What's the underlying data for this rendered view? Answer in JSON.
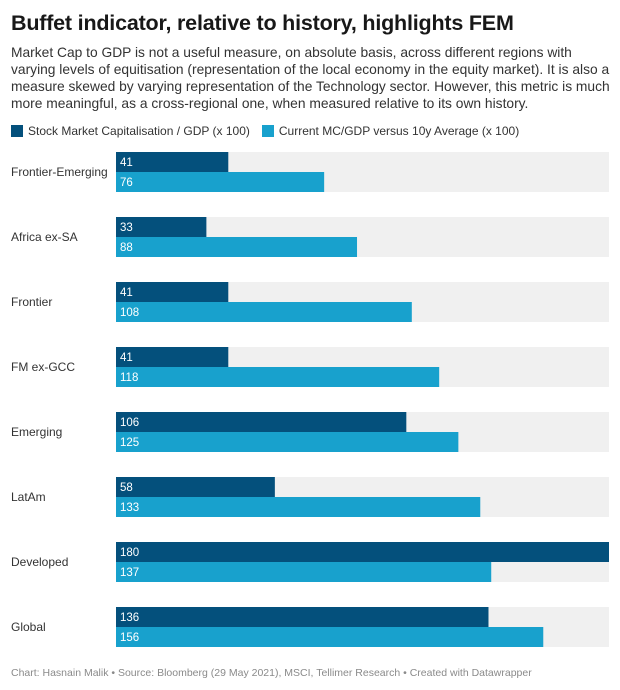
{
  "title": "Buffet indicator, relative to history, highlights FEM",
  "subtitle": "Market Cap to GDP is not a useful measure, on absolute basis, across different regions with varying levels of equitisation (representation of the local economy in the equity market). It is also a measure skewed by varying representation of the Technology sector. However, this metric is much more meaningful, as a cross-regional one, when measured relative to its own history.",
  "footer": "Chart: Hasnain Malik • Source: Bloomberg (29 May 2021), MSCI, Tellimer Research • Created with Datawrapper",
  "colors": {
    "dark": "#04507c",
    "light": "#18a1cd",
    "track": "#f0f0f0"
  },
  "chart_data": {
    "type": "bar",
    "orientation": "horizontal",
    "categories": [
      "Frontier-Emerging",
      "Africa ex-SA",
      "Frontier",
      "FM ex-GCC",
      "Emerging",
      "LatAm",
      "Developed",
      "Global"
    ],
    "series": [
      {
        "name": "Stock Market Capitalisation / GDP (x 100)",
        "values": [
          41,
          33,
          41,
          41,
          106,
          58,
          180,
          136
        ]
      },
      {
        "name": "Current MC/GDP versus 10y Average (x 100)",
        "values": [
          76,
          88,
          108,
          118,
          125,
          133,
          137,
          156
        ]
      }
    ],
    "xlim": [
      0,
      180
    ],
    "legend": "top-left"
  }
}
